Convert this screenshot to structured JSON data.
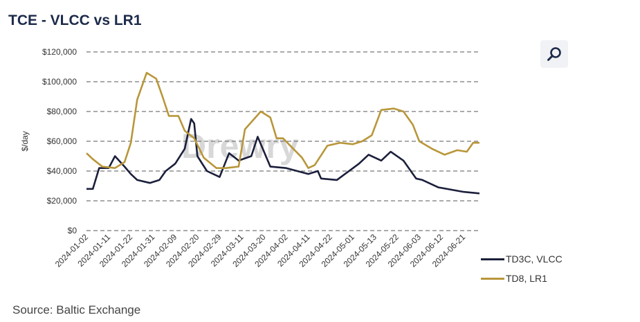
{
  "header": {
    "title": "TCE - VLCC vs LR1",
    "zoom_icon": "magnifier-icon"
  },
  "footer": {
    "source": "Source: Baltic Exchange"
  },
  "watermark": "Drewry",
  "chart_data": {
    "type": "line",
    "title": "TCE - VLCC vs LR1",
    "xlabel": "",
    "ylabel": "$/day",
    "x_unit": "business-day index from 2024-01-02",
    "xlim": [
      0,
      124
    ],
    "ylim": [
      0,
      120000
    ],
    "yticks": [
      0,
      20000,
      40000,
      60000,
      80000,
      100000,
      120000
    ],
    "ytick_labels": [
      "$0",
      "$20,000",
      "$40,000",
      "$60,000",
      "$80,000",
      "$100,000",
      "$120,000"
    ],
    "xticks": [
      0,
      7,
      14,
      21,
      28,
      35,
      42,
      49,
      56,
      63,
      70,
      77,
      84,
      91,
      98,
      105,
      112,
      119
    ],
    "xtick_labels": [
      "2024-01-02",
      "2024-01-11",
      "2024-01-22",
      "2024-01-31",
      "2024-02-09",
      "2024-02-20",
      "2024-02-29",
      "2024-03-11",
      "2024-03-20",
      "2024-04-02",
      "2024-04-11",
      "2024-04-22",
      "2024-05-01",
      "2024-05-13",
      "2024-05-22",
      "2024-06-03",
      "2024-06-12",
      "2024-06-21"
    ],
    "grid": "horizontal-dashed",
    "legend": "bottom-right",
    "series": [
      {
        "name": "TD3C, VLCC",
        "color": "#1b1f3b",
        "x": [
          0,
          2,
          4,
          7,
          9,
          12,
          14,
          16,
          20,
          23,
          25,
          28,
          31,
          33,
          34,
          35,
          38,
          42,
          45,
          48,
          52,
          54,
          58,
          63,
          70,
          73,
          74,
          79,
          86,
          89,
          93,
          96,
          100,
          104,
          106,
          111,
          119,
          124
        ],
        "y": [
          28000,
          28000,
          42000,
          42000,
          50000,
          43000,
          38000,
          34000,
          32000,
          34000,
          40000,
          45000,
          55000,
          75000,
          72000,
          50000,
          40000,
          36000,
          52000,
          47000,
          50000,
          63000,
          43000,
          42000,
          38000,
          40000,
          35000,
          34000,
          45000,
          51000,
          47000,
          53000,
          47000,
          35000,
          34000,
          29000,
          26000,
          25000
        ]
      },
      {
        "name": "TD8, LR1",
        "color": "#b8963a",
        "x": [
          0,
          2,
          5,
          9,
          12,
          14,
          16,
          19,
          22,
          24,
          26,
          29,
          31,
          34,
          37,
          41,
          44,
          48,
          50,
          55,
          58,
          60,
          62,
          68,
          70,
          72,
          76,
          80,
          84,
          87,
          90,
          93,
          97,
          100,
          103,
          105,
          109,
          113,
          117,
          120,
          122,
          124
        ],
        "y": [
          52000,
          48000,
          43000,
          42000,
          46000,
          59000,
          88000,
          106000,
          102000,
          90000,
          77000,
          77000,
          67000,
          62000,
          49000,
          42000,
          42000,
          43000,
          68000,
          80000,
          76000,
          62000,
          62000,
          49000,
          42000,
          44000,
          57000,
          59000,
          58000,
          60000,
          64000,
          81000,
          82000,
          80000,
          71000,
          60000,
          55000,
          51000,
          54000,
          53000,
          59000,
          59000
        ]
      }
    ]
  }
}
